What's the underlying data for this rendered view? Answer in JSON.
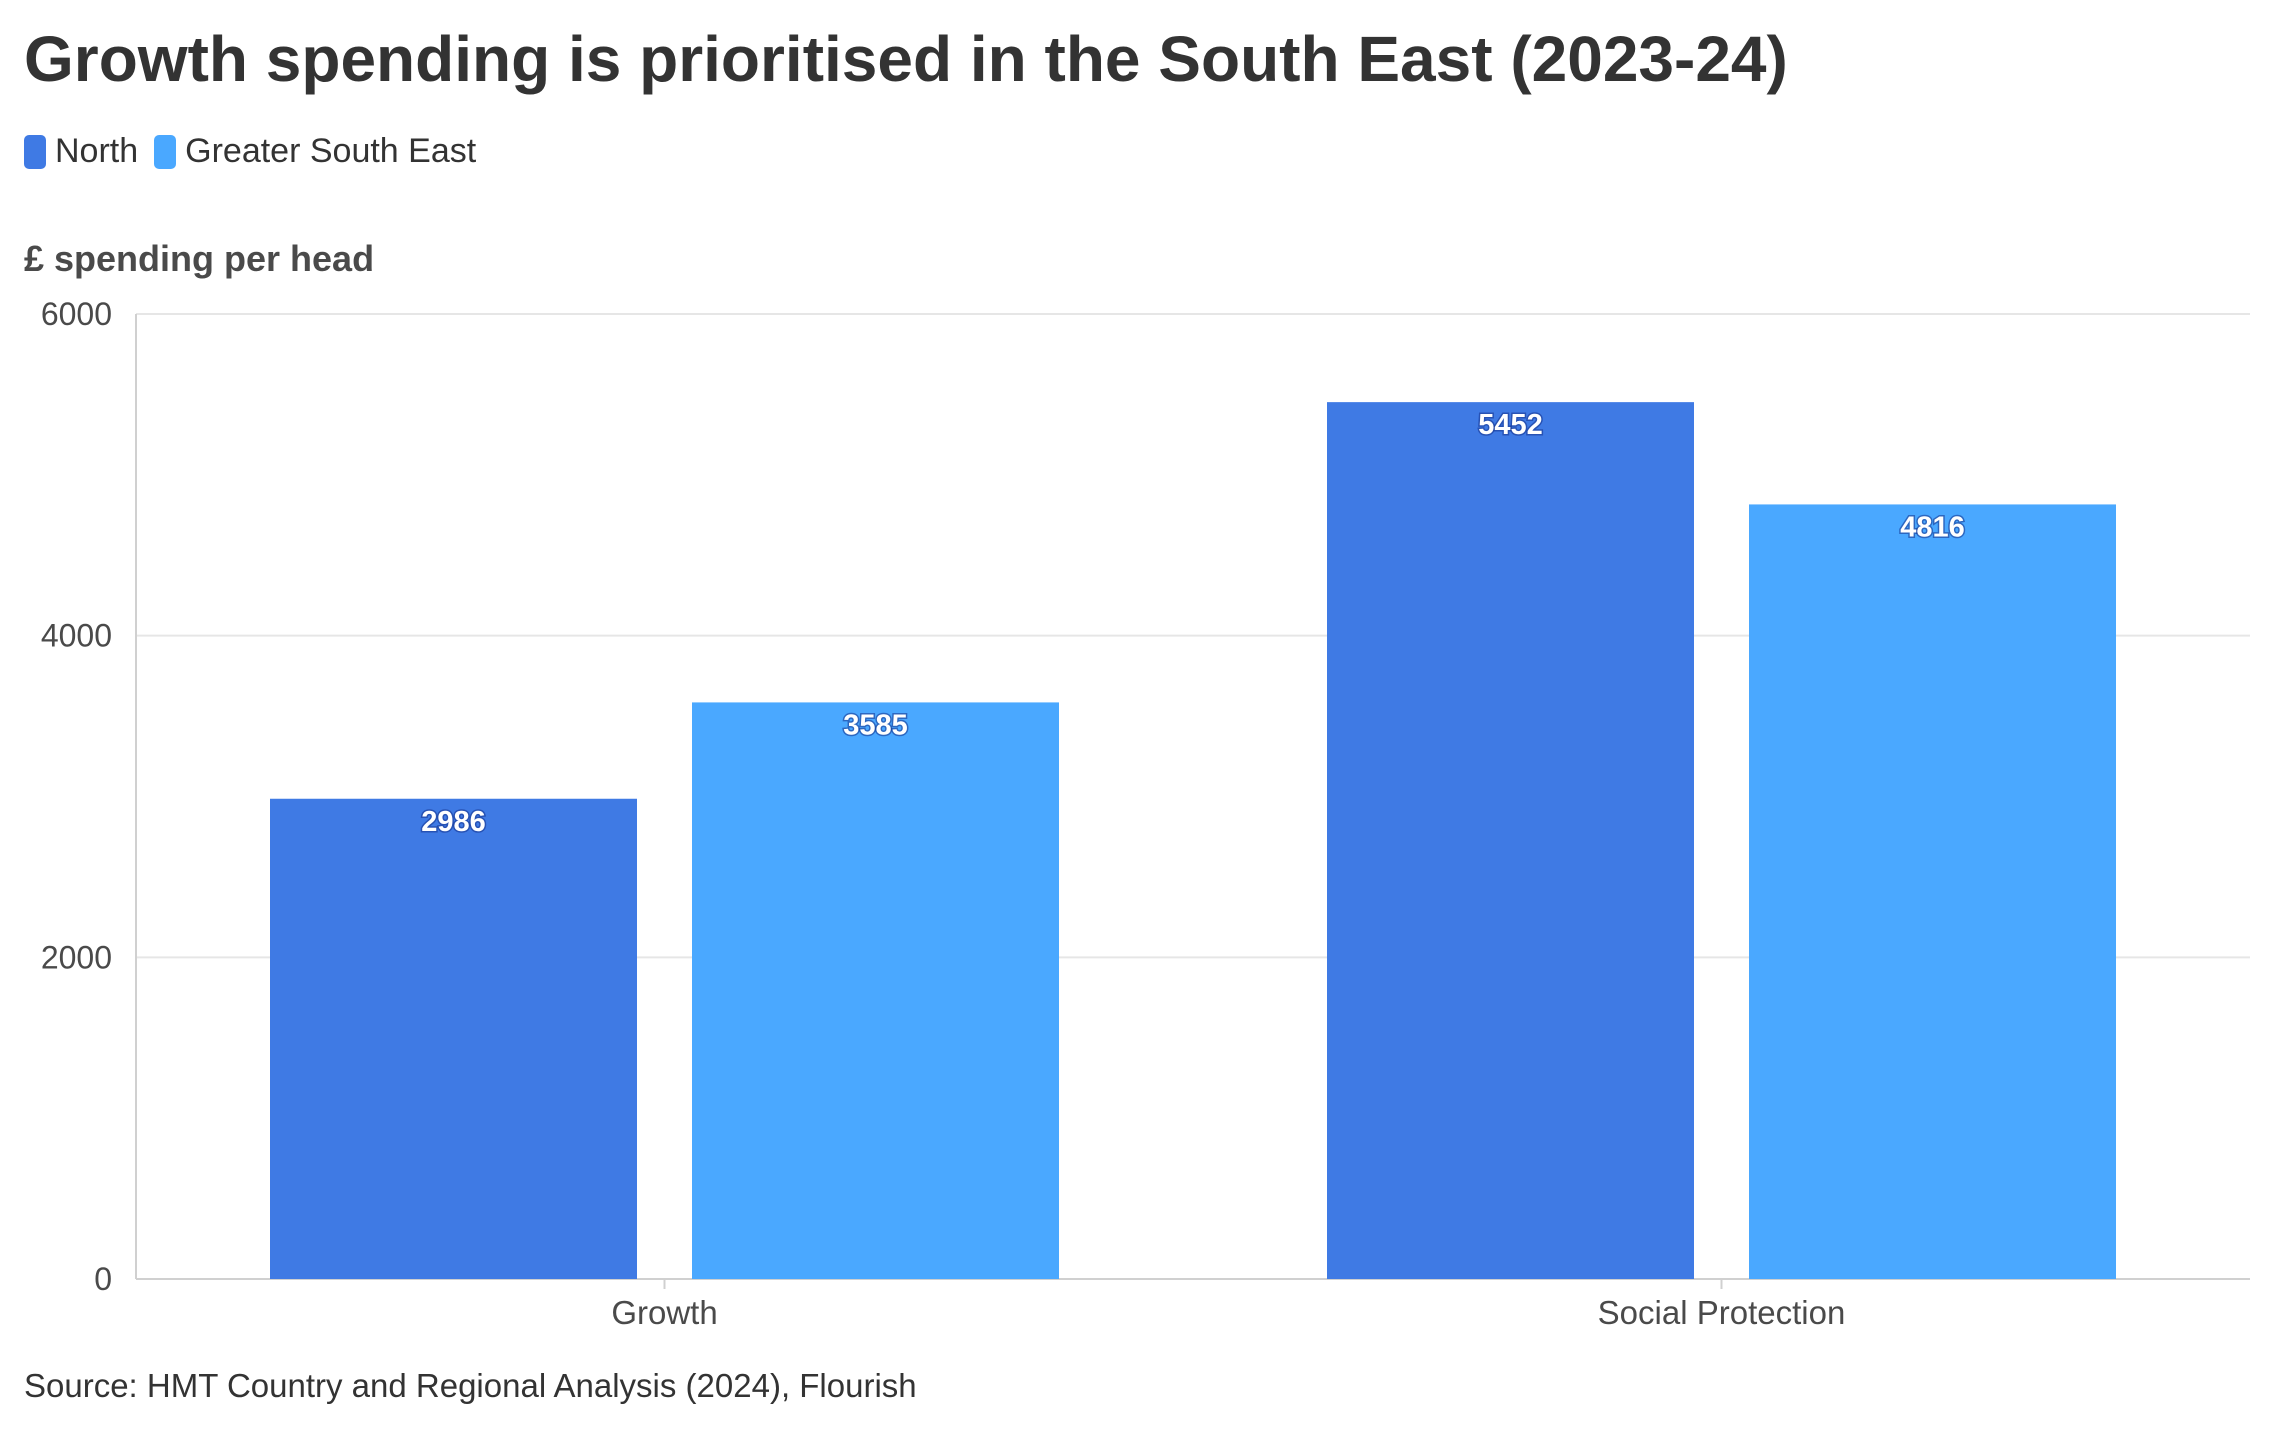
{
  "title": "Growth spending is prioritised in the South East (2023-24)",
  "source": "Source: HMT Country and Regional Analysis (2024), Flourish",
  "colors": {
    "North": "#3f7ae4",
    "Greater South East": "#4aa8ff",
    "grid": "#e6e6e6",
    "axis": "#d0d0d0"
  },
  "chart_data": {
    "type": "bar",
    "title": "Growth spending is prioritised in the South East (2023-24)",
    "ylabel": "£ spending per head",
    "xlabel": "",
    "categories": [
      "Growth",
      "Social Protection"
    ],
    "series": [
      {
        "name": "North",
        "values": [
          2986,
          5452
        ]
      },
      {
        "name": "Greater South East",
        "values": [
          3585,
          4816
        ]
      }
    ],
    "ylim": [
      0,
      6000
    ],
    "yticks": [
      0,
      2000,
      4000,
      6000
    ],
    "grid": true,
    "legend": "top-left",
    "data_labels": true
  }
}
